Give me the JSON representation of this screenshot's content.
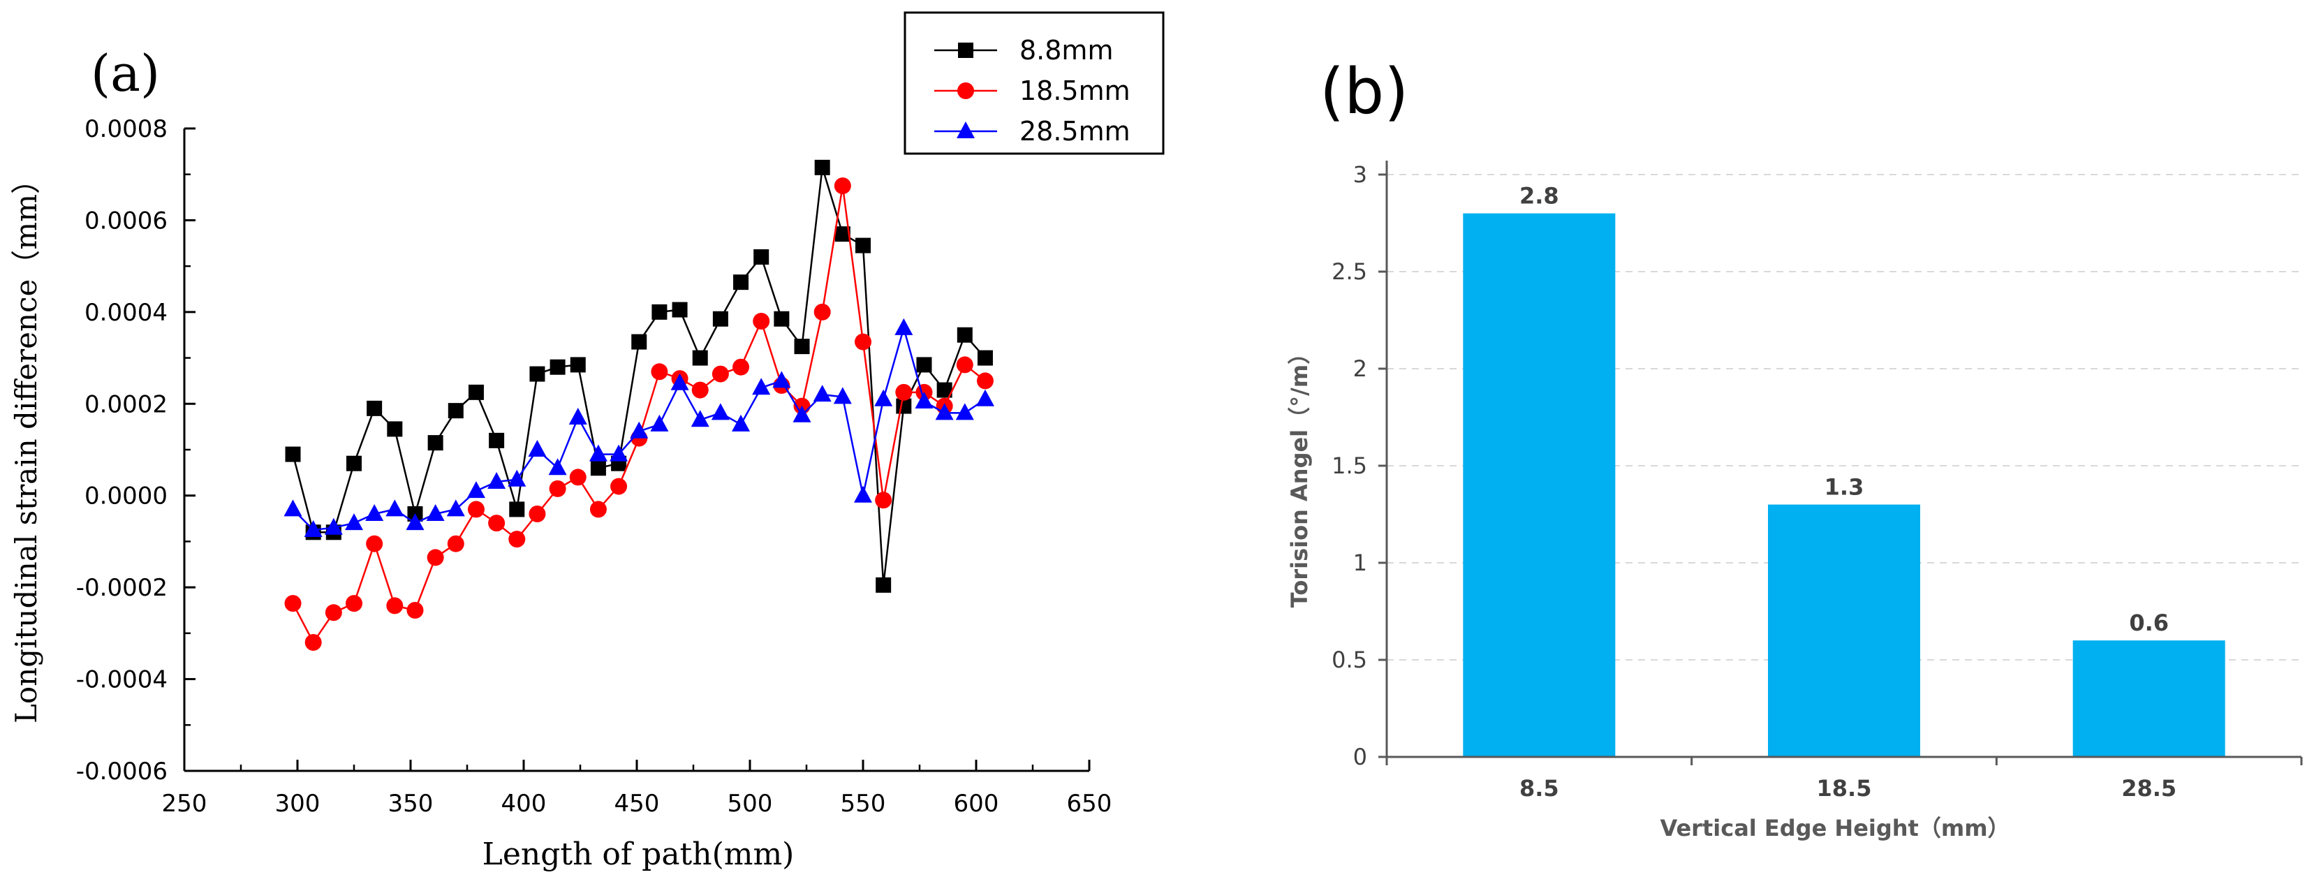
{
  "chart_data": [
    {
      "panel": "(a)",
      "type": "line",
      "title": "",
      "xlabel": "Length of path(mm)",
      "ylabel": "Longitudinal strain difference（mm）",
      "xlim": [
        250,
        650
      ],
      "ylim": [
        -0.0006,
        0.0008
      ],
      "xticks": [
        "250",
        "300",
        "350",
        "400",
        "450",
        "500",
        "550",
        "600",
        "650"
      ],
      "yticks": [
        "-0.0006",
        "-0.0004",
        "-0.0002",
        "0.0000",
        "0.0002",
        "0.0004",
        "0.0006",
        "0.0008"
      ],
      "grid": false,
      "legend_position": "top-right outside",
      "x": [
        298,
        307,
        316,
        325,
        334,
        343,
        352,
        361,
        370,
        379,
        388,
        397,
        406,
        415,
        424,
        433,
        442,
        451,
        460,
        469,
        478,
        487,
        496,
        505,
        514,
        523,
        532,
        541,
        550,
        559,
        568,
        577,
        586,
        595,
        604
      ],
      "series": [
        {
          "name": "8.8mm",
          "color": "#000000",
          "marker": "square",
          "values": [
            9e-05,
            -8e-05,
            -8e-05,
            7e-05,
            0.00019,
            0.000145,
            -4e-05,
            0.000115,
            0.000185,
            0.000225,
            0.00012,
            -3e-05,
            0.000265,
            0.00028,
            0.000285,
            6e-05,
            7e-05,
            0.000335,
            0.0004,
            0.000405,
            0.0003,
            0.000385,
            0.000465,
            0.00052,
            0.000385,
            0.000325,
            0.000715,
            0.00057,
            0.000545,
            -0.000195,
            0.000195,
            0.000285,
            0.00023,
            0.00035,
            0.0003
          ]
        },
        {
          "name": "18.5mm",
          "color": "#ff0000",
          "marker": "circle",
          "values": [
            -0.000235,
            -0.00032,
            -0.000255,
            -0.000235,
            -0.000105,
            -0.00024,
            -0.00025,
            -0.000135,
            -0.000105,
            -3e-05,
            -6e-05,
            -9.5e-05,
            -4e-05,
            1.5e-05,
            4e-05,
            -3e-05,
            2e-05,
            0.000125,
            0.00027,
            0.000255,
            0.00023,
            0.000265,
            0.00028,
            0.00038,
            0.00024,
            0.000195,
            0.0004,
            0.000675,
            0.000335,
            -1e-05,
            0.000225,
            0.000225,
            0.000195,
            0.000285,
            0.00025
          ]
        },
        {
          "name": "28.5mm",
          "color": "#0000ff",
          "marker": "triangle",
          "values": [
            -3e-05,
            -7.5e-05,
            -7e-05,
            -6e-05,
            -4e-05,
            -3e-05,
            -6e-05,
            -4e-05,
            -3e-05,
            1e-05,
            3e-05,
            3.5e-05,
            0.0001,
            6e-05,
            0.00017,
            9e-05,
            9e-05,
            0.00014,
            0.000155,
            0.000245,
            0.000165,
            0.00018,
            0.000155,
            0.000235,
            0.00025,
            0.000175,
            0.00022,
            0.000215,
            0.0,
            0.00021,
            0.000365,
            0.000205,
            0.00018,
            0.00018,
            0.00021
          ]
        }
      ]
    },
    {
      "panel": "(b)",
      "type": "bar",
      "title": "",
      "xlabel": "Vertical Edge Height（mm）",
      "ylabel": "Torision Angel（°/m）",
      "ylim": [
        0,
        3
      ],
      "yticks": [
        "0",
        "0.5",
        "1",
        "1.5",
        "2",
        "2.5",
        "3"
      ],
      "grid": true,
      "categories": [
        "8.5",
        "18.5",
        "28.5"
      ],
      "values": [
        2.8,
        1.3,
        0.6
      ],
      "value_labels": [
        "2.8",
        "1.3",
        "0.6"
      ],
      "bar_color": "#00b0f0"
    }
  ]
}
